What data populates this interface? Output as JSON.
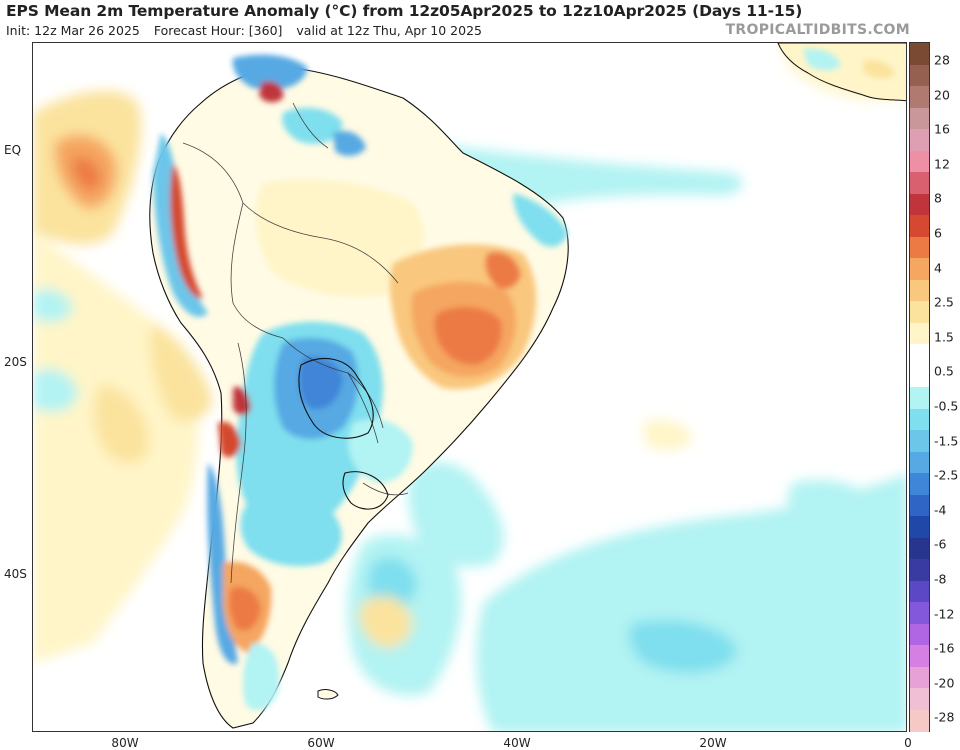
{
  "header": {
    "title": "EPS Mean 2m Temperature Anomaly (°C) from 12z05Apr2025 to 12z10Apr2025 (Days 11-15)",
    "init": "Init: 12z Mar 26 2025",
    "forecast_hour": "Forecast Hour: [360]",
    "valid": "valid at 12z Thu, Apr 10 2025",
    "credit": "TROPICALTIDBITS.COM"
  },
  "map": {
    "region": "South America",
    "lat_labels": [
      "EQ",
      "20S",
      "40S"
    ],
    "lon_labels": [
      "80W",
      "60W",
      "40W",
      "20W",
      "0"
    ]
  },
  "colorbar": {
    "labels": [
      "28",
      "20",
      "16",
      "12",
      "8",
      "6",
      "4",
      "2.5",
      "1.5",
      "0.5",
      "-0.5",
      "-1.5",
      "-2.5",
      "-4",
      "-6",
      "-8",
      "-12",
      "-16",
      "-20",
      "-28"
    ],
    "colors": [
      "#7a4a33",
      "#95604f",
      "#b07a72",
      "#c9969a",
      "#de9fb2",
      "#ee8fa6",
      "#d9606f",
      "#c0353b",
      "#d4492f",
      "#ec7a45",
      "#f5a660",
      "#f9c77e",
      "#fbe39e",
      "#fff5c8",
      "#ffffff",
      "#ffffff",
      "#b2f3f3",
      "#7fdfee",
      "#6cc6ea",
      "#56a9e3",
      "#3f85d8",
      "#2f66c6",
      "#1f48a8",
      "#27358f",
      "#3a3aa3",
      "#5a48c5",
      "#8458db",
      "#b066e2",
      "#d67fe2",
      "#e8a1d6",
      "#f0bfd5",
      "#f6c9c6"
    ]
  }
}
